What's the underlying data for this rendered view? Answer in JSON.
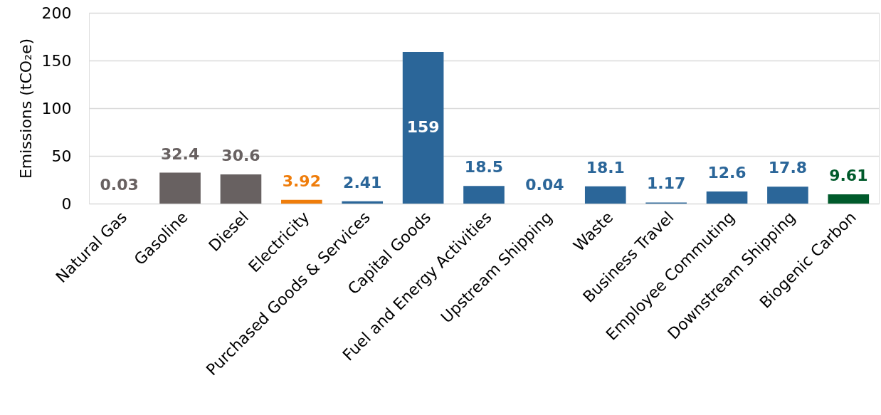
{
  "chart_data": {
    "type": "bar",
    "ylabel": "Emissions (tCO₂e)",
    "categories": [
      "Natural Gas",
      "Gasoline",
      "Diesel",
      "Electricity",
      "Purchased Goods & Services",
      "Capital Goods",
      "Fuel and Energy Activities",
      "Upstream Shipping",
      "Waste",
      "Business Travel",
      "Employee Commuting",
      "Downstream Shipping",
      "Biogenic Carbon"
    ],
    "values": [
      0.03,
      32.4,
      30.6,
      3.92,
      2.41,
      159,
      18.5,
      0.04,
      18.1,
      1.17,
      12.6,
      17.8,
      9.61
    ],
    "colors": [
      "#686161",
      "#686161",
      "#686161",
      "#ef7d0b",
      "#2b6699",
      "#2b6699",
      "#2b6699",
      "#2b6699",
      "#2b6699",
      "#2b6699",
      "#2b6699",
      "#2b6699",
      "#005a2b"
    ],
    "ylim": [
      0,
      200
    ],
    "yticks": [
      0,
      50,
      100,
      150,
      200
    ],
    "grid": "y",
    "data_labels": true
  }
}
